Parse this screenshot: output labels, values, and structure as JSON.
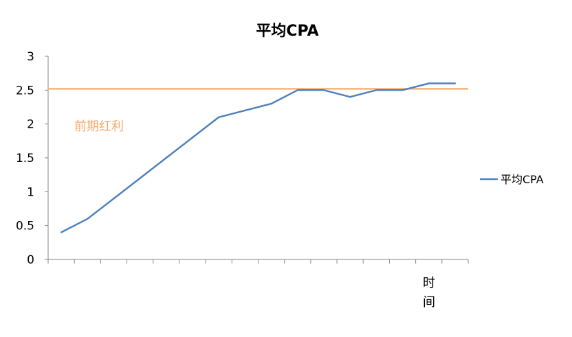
{
  "chart_data": {
    "type": "line",
    "title": "平均CPA",
    "xlabel": "时间",
    "ylabel": "",
    "ylim": [
      0,
      3
    ],
    "yticks": [
      "0",
      "0.5",
      "1",
      "1.5",
      "2",
      "2.5",
      "3"
    ],
    "yticks_values": [
      0,
      0.5,
      1,
      1.5,
      2,
      2.5,
      3
    ],
    "x": [
      1,
      2,
      3,
      4,
      5,
      6,
      7,
      8,
      9,
      10,
      11,
      12,
      13,
      14,
      15,
      16
    ],
    "series": [
      {
        "name": "平均CPA",
        "color": "#4f81bd",
        "values": [
          0.4,
          0.6,
          0.9,
          1.2,
          1.5,
          1.8,
          2.1,
          2.2,
          2.3,
          2.5,
          2.5,
          2.4,
          2.5,
          2.5,
          2.6,
          2.6
        ]
      }
    ],
    "reference_line": {
      "value": 2.52,
      "color": "#f7b27a"
    },
    "annotation": {
      "text": "前期红利",
      "color": "#f5a86a"
    },
    "legend_position": "right",
    "grid": false
  }
}
